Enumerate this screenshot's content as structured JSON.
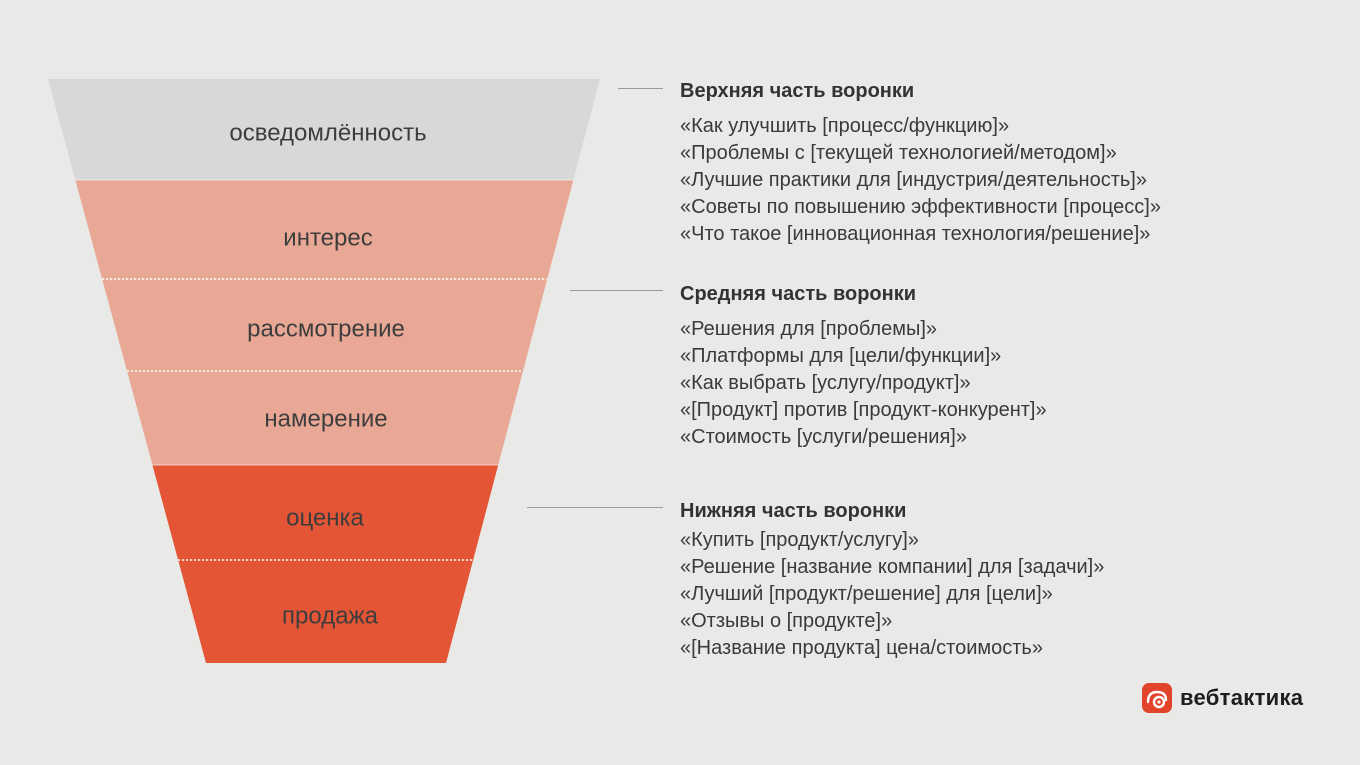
{
  "funnel": {
    "colors": {
      "top": "#d8d8d8",
      "middle": "#e9a895",
      "bottom": "#e35535",
      "divider": "#ffffff",
      "connector": "#9a9a9a"
    },
    "stages": [
      {
        "label": "осведомлённость",
        "group": "top"
      },
      {
        "label": "интерес",
        "group": "middle"
      },
      {
        "label": "рассмотрение",
        "group": "middle"
      },
      {
        "label": "намерение",
        "group": "middle"
      },
      {
        "label": "оценка",
        "group": "bottom"
      },
      {
        "label": "продажа",
        "group": "bottom"
      }
    ]
  },
  "groups": [
    {
      "title": "Верхняя часть воронки",
      "items": [
        "«Как улучшить [процесс/функцию]»",
        "«Проблемы с [текущей технологией/методом]»",
        "«Лучшие практики для [индустрия/деятельность]»",
        "«Советы по повышению эффективности [процесс]»",
        "«Что такое [инновационная технология/решение]»"
      ]
    },
    {
      "title": "Средняя часть воронки",
      "items": [
        "«Решения для [проблемы]»",
        "«Платформы для [цели/функции]»",
        "«Как выбрать [услугу/продукт]»",
        "«[Продукт] против [продукт-конкурент]»",
        "«Стоимость [услуги/решения]»"
      ]
    },
    {
      "title": "Нижняя часть воронки",
      "items": [
        "«Купить [продукт/услугу]»",
        "«Решение [название компании] для [задачи]»",
        "«Лучший [продукт/решение] для [цели]»",
        "«Отзывы о [продукте]»",
        "«[Название продукта] цена/стоимость»"
      ]
    }
  ],
  "brand": {
    "name": "вебтактика",
    "icon": "webtaktika-logo-icon",
    "color": "#e2432b"
  }
}
